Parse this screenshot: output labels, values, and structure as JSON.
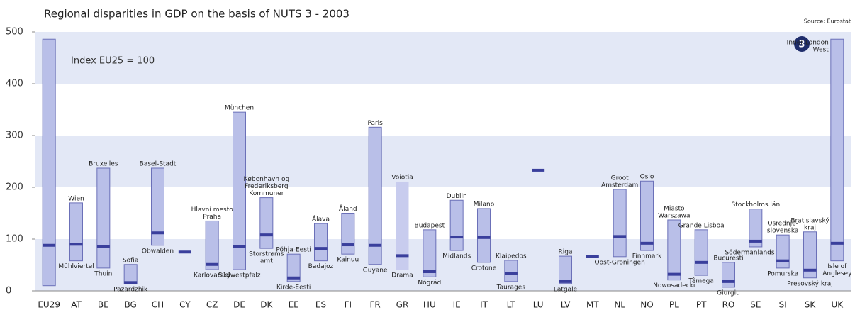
{
  "chart_data": {
    "type": "range",
    "title": "Regional disparities in GDP on the basis of NUTS 3 - 2003",
    "source": "Source: Eurostat",
    "annotation": "Index EU25 = 100",
    "badge": "3",
    "categories": [
      "EU29",
      "AT",
      "BE",
      "BG",
      "CH",
      "CY",
      "CZ",
      "DE",
      "DK",
      "EE",
      "ES",
      "FI",
      "FR",
      "GR",
      "HU",
      "IE",
      "IT",
      "LT",
      "LU",
      "LV",
      "MT",
      "NL",
      "NO",
      "PL",
      "PT",
      "RO",
      "SE",
      "SI",
      "SK",
      "UK"
    ],
    "high": [
      486,
      170,
      237,
      51,
      237,
      null,
      135,
      345,
      180,
      71,
      130,
      150,
      316,
      211,
      118,
      175,
      159,
      59,
      null,
      67,
      null,
      196,
      212,
      137,
      118,
      55,
      158,
      108,
      114,
      486
    ],
    "low": [
      10,
      58,
      44,
      14,
      88,
      null,
      41,
      41,
      82,
      18,
      58,
      71,
      51,
      41,
      27,
      78,
      55,
      18,
      null,
      14,
      null,
      66,
      78,
      21,
      30,
      7,
      85,
      44,
      25,
      58
    ],
    "values": [
      88,
      90,
      85,
      16,
      112,
      75,
      51,
      85,
      108,
      25,
      82,
      89,
      88,
      68,
      37,
      104,
      103,
      34,
      233,
      18,
      67,
      105,
      92,
      32,
      55,
      18,
      96,
      58,
      40,
      92
    ],
    "high_labels": [
      null,
      [
        "Wien"
      ],
      [
        "Bruxelles"
      ],
      [
        "Sofia"
      ],
      [
        "Basel-Stadt"
      ],
      null,
      [
        "Hlavní mesto",
        "Praha"
      ],
      [
        "München"
      ],
      [
        "København og",
        "Frederiksberg",
        "Kommuner"
      ],
      [
        "Põhja-Eesti"
      ],
      [
        "Álava"
      ],
      [
        "Åland"
      ],
      [
        "Paris"
      ],
      [
        "Voiotia"
      ],
      [
        "Budapest"
      ],
      [
        "Dublin"
      ],
      [
        "Milano"
      ],
      [
        "Klaipedos"
      ],
      null,
      [
        "Riga"
      ],
      null,
      [
        "Groot",
        "Amsterdam"
      ],
      [
        "Oslo"
      ],
      [
        "Miasto",
        "Warszawa"
      ],
      [
        "Grande Lisboa"
      ],
      [
        "Bucuresti"
      ],
      [
        "Stockholms län"
      ],
      [
        "Osrednje-",
        "slovenska"
      ],
      [
        "Bratislavský",
        "kraj"
      ],
      [
        "Inner London",
        "- West"
      ]
    ],
    "low_labels": [
      null,
      [
        "Mühlviertel"
      ],
      [
        "Thuin"
      ],
      [
        "Pazardzhik"
      ],
      [
        "Obwalden"
      ],
      null,
      [
        "Karlovarský"
      ],
      [
        "Südwestpfalz"
      ],
      [
        "Storstrøms",
        "amt"
      ],
      [
        "Kirde-Eesti"
      ],
      [
        "Badajoz"
      ],
      [
        "Kainuu"
      ],
      [
        "Guyane"
      ],
      [
        "Drama"
      ],
      [
        "Nógrád"
      ],
      [
        "Midlands"
      ],
      [
        "Crotone"
      ],
      [
        "Taurages"
      ],
      null,
      [
        "Latgale"
      ],
      null,
      [
        "Oost-Groningen"
      ],
      [
        "Finnmark"
      ],
      [
        "Nowosadecki"
      ],
      [
        "Tâmega"
      ],
      [
        "Giurgiu"
      ],
      [
        "Södermanlands län"
      ],
      [
        "Pomurska"
      ],
      [
        "Presovský kraj"
      ],
      [
        "Isle of",
        "Anglesey"
      ]
    ],
    "bar_color": "#b9bfe8",
    "highlight_color": "#c8ccee",
    "highlight_category": "GR",
    "bar_stroke": "#6b70b8",
    "marker_color": "#3a3f9c",
    "band_color": "#e3e8f6",
    "ylim": [
      0,
      500
    ],
    "yticks": [
      0,
      100,
      200,
      300,
      400,
      500
    ],
    "bands": true
  }
}
